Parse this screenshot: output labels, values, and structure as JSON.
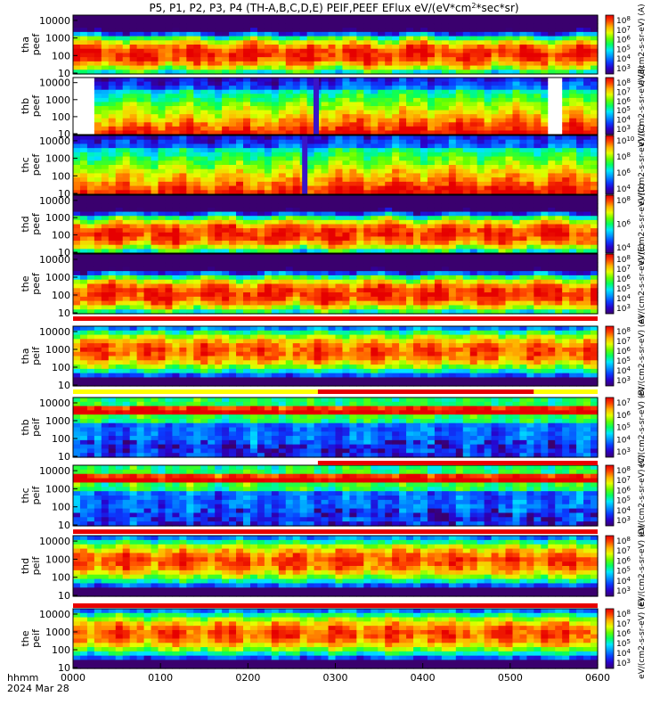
{
  "chart_data": {
    "type": "heatmap",
    "title": "P5, P1, P2, P3, P4 (TH-A,B,C,D,E) PEIF,PEEF EFlux eV/(eV*cm²*sec*sr)",
    "title_parts": {
      "main": "P5, P1, P2, P3, P4 (TH-A,B,C,D,E) PEIF,PEEF EFlux eV/(eV*cm",
      "sup": "2",
      "tail": "*sec*sr)"
    },
    "x_corner_labels": [
      "hhmm",
      "2024 Mar 28"
    ],
    "x_ticks": [
      "0000",
      "0100",
      "0200",
      "0300",
      "0400",
      "0500",
      "0600"
    ],
    "xlim": [
      "00:00",
      "06:00"
    ],
    "y_ticks": [
      "10",
      "100",
      "1000",
      "10000"
    ],
    "y_scale": "log",
    "colormap": [
      "#3a006e",
      "#2a00c8",
      "#0a3cff",
      "#0096ff",
      "#00e6ff",
      "#00ff64",
      "#64ff00",
      "#e6ff00",
      "#ffb400",
      "#ff4600",
      "#e60000"
    ],
    "stripe_colors": {
      "red": "#e80000",
      "yellow": "#ffff00",
      "white": "#ffffff",
      "black": "#000000"
    },
    "panels": [
      {
        "ylabel": [
          "tha",
          "peef"
        ],
        "cb_unit": "eV/(cm2-s-sr-eV) (A)",
        "cb_ticks": [
          {
            "exp": "8",
            "label": "10"
          },
          {
            "exp": "7",
            "label": "10"
          },
          {
            "exp": "6",
            "label": "10"
          },
          {
            "exp": "5",
            "label": "10"
          },
          {
            "exp": "4",
            "label": "10"
          },
          {
            "exp": "3",
            "label": "10"
          }
        ],
        "kind": "electron",
        "gaps": [],
        "dropouts": []
      },
      {
        "ylabel": [
          "thb",
          "peef"
        ],
        "cb_unit": "eV/(cm2-s-sr-eV) (B)",
        "cb_ticks": [
          {
            "exp": "8",
            "label": "10"
          },
          {
            "exp": "7",
            "label": "10"
          },
          {
            "exp": "6",
            "label": "10"
          },
          {
            "exp": "5",
            "label": "10"
          },
          {
            "exp": "4",
            "label": "10"
          },
          {
            "exp": "3",
            "label": "10"
          }
        ],
        "kind": "electron_smooth",
        "gaps": [
          [
            0.0,
            0.25
          ],
          [
            5.47,
            5.6
          ]
        ],
        "dropouts": [
          2.75
        ]
      },
      {
        "ylabel": [
          "thc",
          "peef"
        ],
        "cb_unit": "eV/(cm2-s-sr-eV) (C)",
        "cb_ticks": [
          {
            "exp": "10",
            "label": "10"
          },
          {
            "exp": "8",
            "label": "10"
          },
          {
            "exp": "6",
            "label": "10"
          },
          {
            "exp": "4",
            "label": "10"
          }
        ],
        "kind": "electron_smooth",
        "gaps": [],
        "dropouts": [
          2.62
        ]
      },
      {
        "ylabel": [
          "thd",
          "peef"
        ],
        "cb_unit": "eV/(cm2-s-sr-eV) (D)",
        "cb_ticks": [
          {
            "exp": "8",
            "label": "10"
          },
          {
            "exp": "6",
            "label": "10"
          },
          {
            "exp": "4",
            "label": "10"
          }
        ],
        "kind": "electron",
        "gaps": [],
        "dropouts": []
      },
      {
        "ylabel": [
          "the",
          "peef"
        ],
        "cb_unit": "eV/(cm2-s-sr-eV) (E)",
        "cb_ticks": [
          {
            "exp": "8",
            "label": "10"
          },
          {
            "exp": "7",
            "label": "10"
          },
          {
            "exp": "6",
            "label": "10"
          },
          {
            "exp": "5",
            "label": "10"
          },
          {
            "exp": "4",
            "label": "10"
          },
          {
            "exp": "3",
            "label": "10"
          }
        ],
        "kind": "electron",
        "gaps": [],
        "dropouts": []
      },
      {
        "ylabel": [
          "tha",
          "peif"
        ],
        "cb_unit": "eV/(cm2-s-sr-eV) (A)",
        "cb_ticks": [
          {
            "exp": "8",
            "label": "10"
          },
          {
            "exp": "7",
            "label": "10"
          },
          {
            "exp": "6",
            "label": "10"
          },
          {
            "exp": "5",
            "label": "10"
          },
          {
            "exp": "4",
            "label": "10"
          },
          {
            "exp": "3",
            "label": "10"
          }
        ],
        "kind": "ion",
        "gaps": [],
        "dropouts": []
      },
      {
        "ylabel": [
          "thb",
          "peif"
        ],
        "cb_unit": "eV/(cm2-s-sr-eV) (B)",
        "cb_ticks": [
          {
            "exp": "7",
            "label": "10"
          },
          {
            "exp": "6",
            "label": "10"
          },
          {
            "exp": "5",
            "label": "10"
          },
          {
            "exp": "4",
            "label": "10"
          },
          {
            "exp": "3",
            "label": "10"
          }
        ],
        "kind": "ion_solarwind",
        "gaps": [],
        "dropouts": []
      },
      {
        "ylabel": [
          "thc",
          "peif"
        ],
        "cb_unit": "eV/(cm2-s-sr-eV) (C)",
        "cb_ticks": [
          {
            "exp": "8",
            "label": "10"
          },
          {
            "exp": "7",
            "label": "10"
          },
          {
            "exp": "6",
            "label": "10"
          },
          {
            "exp": "5",
            "label": "10"
          },
          {
            "exp": "4",
            "label": "10"
          },
          {
            "exp": "3",
            "label": "10"
          }
        ],
        "kind": "ion_solarwind",
        "gaps": [],
        "dropouts": []
      },
      {
        "ylabel": [
          "thd",
          "peif"
        ],
        "cb_unit": "eV/(cm2-s-sr-eV) (D)",
        "cb_ticks": [
          {
            "exp": "8",
            "label": "10"
          },
          {
            "exp": "7",
            "label": "10"
          },
          {
            "exp": "6",
            "label": "10"
          },
          {
            "exp": "5",
            "label": "10"
          },
          {
            "exp": "4",
            "label": "10"
          },
          {
            "exp": "3",
            "label": "10"
          }
        ],
        "kind": "ion",
        "gaps": [],
        "dropouts": []
      },
      {
        "ylabel": [
          "the",
          "peif"
        ],
        "cb_unit": "eV/(cm2-s-sr-eV) (E)",
        "cb_ticks": [
          {
            "exp": "8",
            "label": "10"
          },
          {
            "exp": "7",
            "label": "10"
          },
          {
            "exp": "6",
            "label": "10"
          },
          {
            "exp": "5",
            "label": "10"
          },
          {
            "exp": "4",
            "label": "10"
          },
          {
            "exp": "3",
            "label": "10"
          }
        ],
        "kind": "ion",
        "gaps": [],
        "dropouts": []
      }
    ],
    "mode_bars": [
      [
        {
          "from": 0.0,
          "to": 6.0,
          "color": "red"
        }
      ],
      [
        {
          "from": 0.0,
          "to": 2.8,
          "color": "yellow"
        },
        {
          "from": 2.8,
          "to": 5.27,
          "color": "red"
        },
        {
          "from": 5.27,
          "to": 6.0,
          "color": "yellow"
        }
      ],
      [
        {
          "from": 2.8,
          "to": 6.0,
          "color": "red"
        }
      ],
      [
        {
          "from": 0.0,
          "to": 6.0,
          "color": "red"
        }
      ],
      [
        {
          "from": 0.0,
          "to": 6.0,
          "color": "red"
        }
      ]
    ]
  }
}
